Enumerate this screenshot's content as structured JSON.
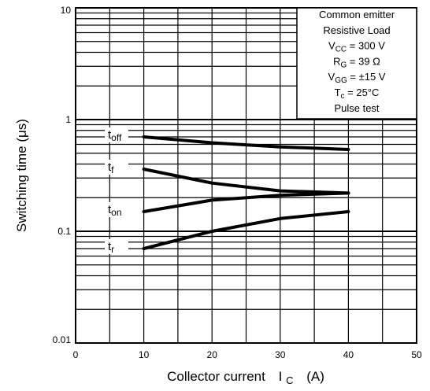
{
  "chart_data": {
    "type": "line",
    "xscale": "linear",
    "yscale": "log",
    "xlim": [
      0,
      50
    ],
    "ylim": [
      0.01,
      10
    ],
    "grid": true,
    "x_ticks": [
      "0",
      "10",
      "20",
      "30",
      "40",
      "50"
    ],
    "y_ticks": [
      "0.01",
      "0.1",
      "1",
      "10"
    ],
    "xlabel": {
      "text": "Collector current",
      "symbol": "I",
      "subscript": "C",
      "unit": "(A)"
    },
    "ylabel": "Switching time   (μs)",
    "annotation_position": "top-right",
    "annotation_lines": [
      {
        "parts": [
          "Common emitter"
        ]
      },
      {
        "parts": [
          "Resistive Load"
        ]
      },
      {
        "parts": [
          "V",
          "CC",
          " = 300 V"
        ]
      },
      {
        "parts": [
          "R",
          "G",
          " = 39 Ω"
        ]
      },
      {
        "parts": [
          "V",
          "GG",
          " = ±15 V"
        ]
      },
      {
        "parts": [
          "T",
          "c",
          " = 25°C"
        ]
      },
      {
        "parts": [
          "Pulse test"
        ]
      }
    ],
    "series": [
      {
        "label_main": "t",
        "label_sub": "off",
        "x": [
          10,
          20,
          30,
          40
        ],
        "y": [
          0.7,
          0.62,
          0.57,
          0.54
        ]
      },
      {
        "label_main": "t",
        "label_sub": "f",
        "x": [
          10,
          20,
          30,
          40
        ],
        "y": [
          0.36,
          0.27,
          0.23,
          0.22
        ]
      },
      {
        "label_main": "t",
        "label_sub": "on",
        "x": [
          10,
          20,
          30,
          40
        ],
        "y": [
          0.15,
          0.19,
          0.21,
          0.22
        ]
      },
      {
        "label_main": "t",
        "label_sub": "r",
        "x": [
          10,
          20,
          30,
          40
        ],
        "y": [
          0.07,
          0.1,
          0.13,
          0.15
        ]
      }
    ]
  }
}
